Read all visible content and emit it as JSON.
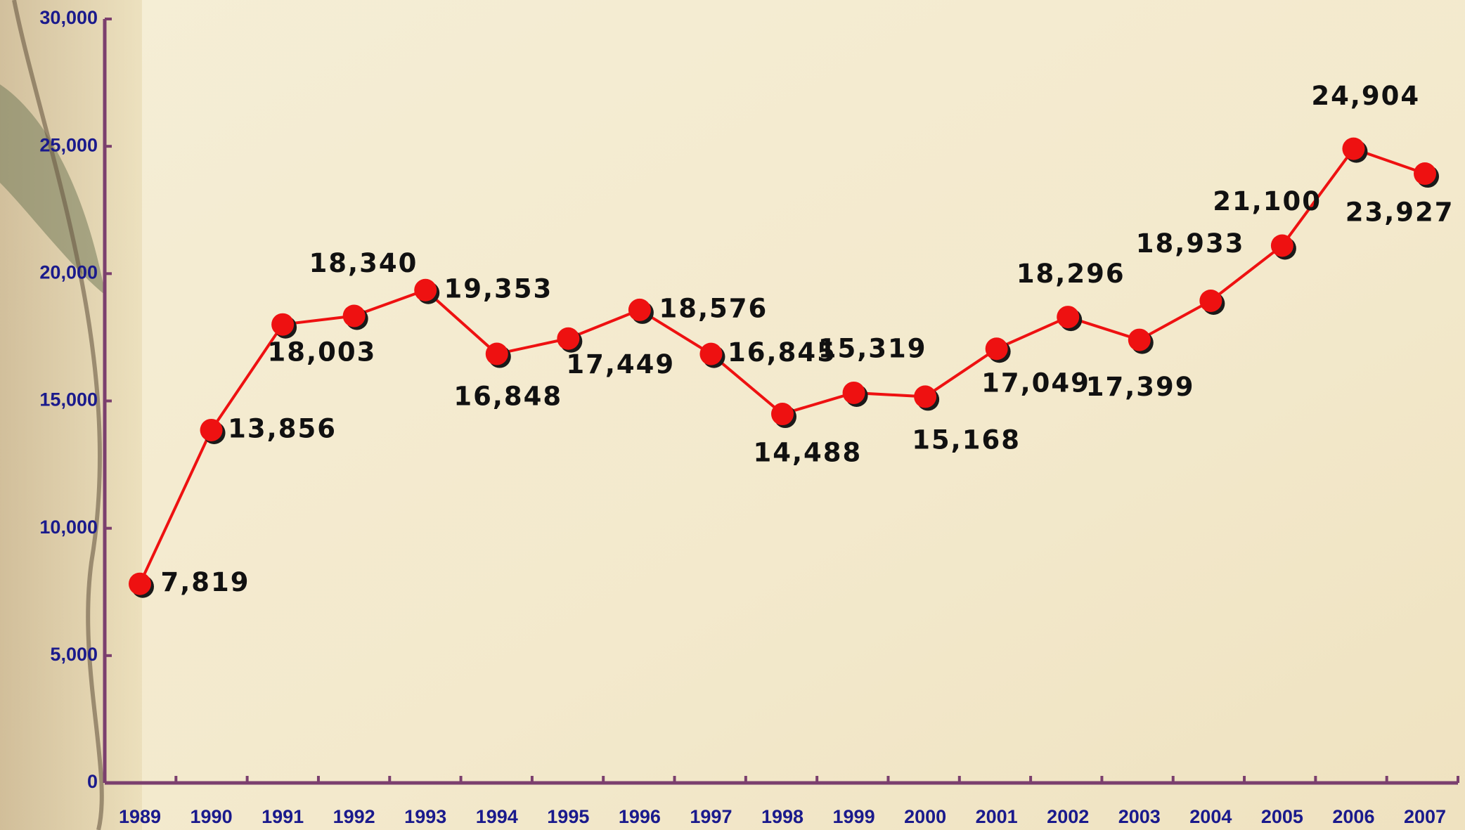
{
  "chart_data": {
    "type": "line",
    "categories": [
      "1989",
      "1990",
      "1991",
      "1992",
      "1993",
      "1994",
      "1995",
      "1996",
      "1997",
      "1998",
      "1999",
      "2000",
      "2001",
      "2002",
      "2003",
      "2004",
      "2005",
      "2006",
      "2007"
    ],
    "series": [
      {
        "color": "#ee1111",
        "values": [
          7819,
          13856,
          18003,
          18340,
          19353,
          16848,
          17449,
          18576,
          16845,
          14488,
          15319,
          15168,
          17049,
          18296,
          17399,
          18933,
          21100,
          24904,
          23927
        ],
        "value_labels": [
          "7,819",
          "13,856",
          "18,003",
          "18,340",
          "19,353",
          "16,848",
          "17,449",
          "18,576",
          "16,845",
          "14,488",
          "15,319",
          "15,168",
          "17,049",
          "18,296",
          "17,399",
          "18,933",
          "21,100",
          "24,904",
          "23,927"
        ]
      }
    ],
    "ylim": [
      0,
      30000
    ],
    "yticks": [
      0,
      {
        "value": 5000,
        "label": "5,000"
      },
      {
        "value": 10000,
        "label": "10,000"
      },
      {
        "value": 15000,
        "label": "15,000"
      },
      {
        "value": 20000,
        "label": "20,000"
      },
      {
        "value": 25000,
        "label": "25,000"
      },
      {
        "value": 30000,
        "label": "30,000"
      }
    ]
  }
}
